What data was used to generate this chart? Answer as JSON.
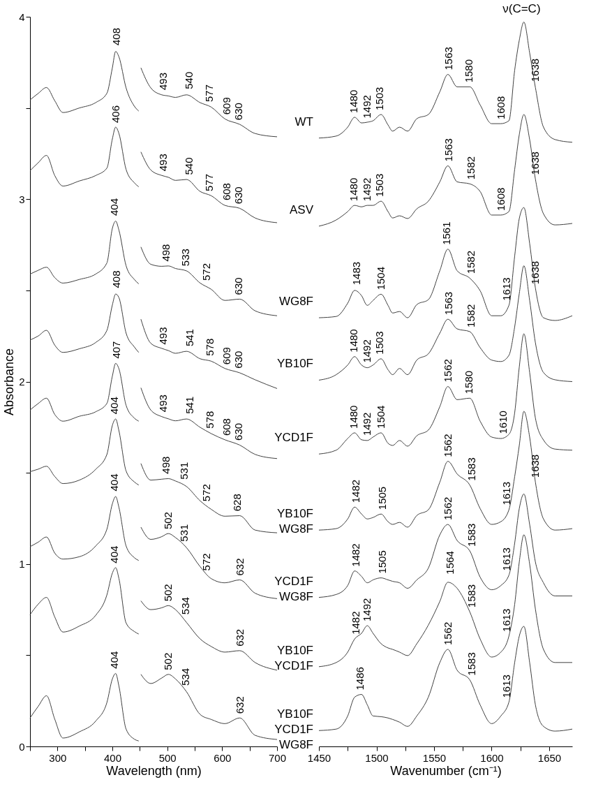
{
  "chart_data": [
    {
      "type": "line",
      "xlabel": "Wavelength (nm)",
      "ylabel": "Absorbance",
      "xlim": [
        250,
        700
      ],
      "ylim": [
        0,
        4
      ],
      "xticks": [
        {
          "value": 250,
          "label": null
        },
        300,
        {
          "value": 350,
          "label": null
        },
        400,
        {
          "value": 450,
          "label": null
        },
        500,
        {
          "value": 550,
          "label": null
        },
        600,
        {
          "value": 650,
          "label": null
        },
        700
      ],
      "yticks": [
        0,
        {
          "value": 0.5,
          "label": null
        },
        1,
        {
          "value": 1.5,
          "label": null
        },
        2,
        {
          "value": 2.5,
          "label": null
        },
        3,
        {
          "value": 3.5,
          "label": null
        },
        4
      ],
      "x": [
        250,
        265,
        280,
        295,
        310,
        340,
        370,
        390,
        400,
        406,
        412,
        425,
        440,
        448,
        450,
        452,
        470,
        490,
        502,
        515,
        535,
        560,
        580,
        605,
        632,
        660,
        700
      ],
      "series": [
        {
          "color": "#404040",
          "values": [
            3.544,
            3.58,
            3.612,
            3.54,
            3.475,
            3.5,
            3.53,
            3.58,
            3.72,
            3.81,
            3.78,
            3.61,
            3.51,
            3.483,
            null,
            3.72,
            3.61,
            3.572,
            3.566,
            3.558,
            3.572,
            3.529,
            3.505,
            3.44,
            3.41,
            3.36,
            3.342
          ]
        },
        {
          "color": "#404040",
          "values": [
            3.156,
            3.2,
            3.24,
            3.13,
            3.072,
            3.1,
            3.13,
            3.17,
            3.33,
            3.395,
            3.36,
            3.163,
            3.09,
            3.068,
            null,
            3.259,
            3.16,
            3.13,
            3.12,
            3.103,
            3.108,
            3.042,
            3.019,
            2.966,
            2.95,
            2.897,
            2.871
          ]
        },
        {
          "color": "#404040",
          "values": [
            2.589,
            2.61,
            2.627,
            2.57,
            2.54,
            2.56,
            2.59,
            2.65,
            2.84,
            2.88,
            2.83,
            2.635,
            2.56,
            2.536,
            null,
            2.738,
            2.643,
            2.632,
            2.634,
            2.62,
            2.607,
            2.54,
            2.506,
            2.445,
            2.452,
            2.388,
            2.361
          ]
        },
        {
          "color": "#404040",
          "values": [
            2.228,
            2.25,
            2.281,
            2.2,
            2.16,
            2.18,
            2.215,
            2.28,
            2.42,
            2.48,
            2.46,
            2.266,
            2.19,
            2.16,
            null,
            2.342,
            2.21,
            2.182,
            2.17,
            2.155,
            2.166,
            2.125,
            2.112,
            2.072,
            2.048,
            2.01,
            1.962
          ]
        },
        {
          "color": "#404040",
          "values": [
            1.844,
            1.88,
            1.909,
            1.82,
            1.783,
            1.81,
            1.835,
            1.88,
            2.03,
            2.1,
            2.07,
            1.87,
            1.8,
            1.783,
            null,
            1.966,
            1.844,
            1.808,
            1.796,
            1.785,
            1.795,
            1.749,
            1.715,
            1.681,
            1.652,
            1.601,
            1.578
          ]
        },
        {
          "color": "#404040",
          "values": [
            1.506,
            1.52,
            1.536,
            1.48,
            1.441,
            1.46,
            1.52,
            1.6,
            1.76,
            1.795,
            1.73,
            1.51,
            1.45,
            1.433,
            null,
            1.551,
            1.46,
            1.465,
            1.468,
            1.455,
            1.425,
            1.346,
            1.3,
            1.262,
            1.265,
            1.186,
            1.171
          ]
        },
        {
          "color": "#404040",
          "values": [
            1.095,
            1.12,
            1.148,
            1.06,
            1.027,
            1.04,
            1.1,
            1.19,
            1.33,
            1.37,
            1.31,
            1.099,
            1.035,
            1.019,
            null,
            1.202,
            1.135,
            1.15,
            1.167,
            1.145,
            1.09,
            0.985,
            0.92,
            0.897,
            0.913,
            0.84,
            0.81
          ]
        },
        {
          "color": "#404040",
          "values": [
            0.722,
            0.78,
            0.817,
            0.71,
            0.627,
            0.66,
            0.72,
            0.83,
            0.95,
            0.98,
            0.92,
            0.677,
            0.63,
            0.616,
            null,
            0.798,
            0.75,
            0.76,
            0.772,
            0.75,
            0.68,
            0.589,
            0.548,
            0.517,
            0.525,
            0.46,
            0.418
          ]
        },
        {
          "color": "#404040",
          "values": [
            0.156,
            0.22,
            0.278,
            0.15,
            0.046,
            0.08,
            0.14,
            0.24,
            0.37,
            0.4,
            0.33,
            0.095,
            0.04,
            0.03,
            null,
            0.395,
            0.345,
            0.375,
            0.395,
            0.37,
            0.3,
            0.175,
            0.148,
            0.125,
            0.156,
            0.061,
            0.038
          ]
        }
      ],
      "annotations": [
        {
          "text": "408",
          "x": 408,
          "y": 3.82
        },
        {
          "text": "493",
          "x": 493,
          "y": 3.575
        },
        {
          "text": "540",
          "x": 540,
          "y": 3.58
        },
        {
          "text": "577",
          "x": 577,
          "y": 3.51
        },
        {
          "text": "609",
          "x": 609,
          "y": 3.44
        },
        {
          "text": "630",
          "x": 630,
          "y": 3.41
        },
        {
          "text": "406",
          "x": 406,
          "y": 3.395
        },
        {
          "text": "493",
          "x": 493,
          "y": 3.13
        },
        {
          "text": "540",
          "x": 540,
          "y": 3.11
        },
        {
          "text": "577",
          "x": 577,
          "y": 3.02
        },
        {
          "text": "608",
          "x": 608,
          "y": 2.97
        },
        {
          "text": "630",
          "x": 630,
          "y": 2.95
        },
        {
          "text": "404",
          "x": 404,
          "y": 2.886
        },
        {
          "text": "498",
          "x": 498,
          "y": 2.635
        },
        {
          "text": "533",
          "x": 533,
          "y": 2.61
        },
        {
          "text": "572",
          "x": 572,
          "y": 2.53
        },
        {
          "text": "630",
          "x": 630,
          "y": 2.452
        },
        {
          "text": "408",
          "x": 408,
          "y": 2.49
        },
        {
          "text": "493",
          "x": 493,
          "y": 2.18
        },
        {
          "text": "541",
          "x": 541,
          "y": 2.17
        },
        {
          "text": "578",
          "x": 578,
          "y": 2.118
        },
        {
          "text": "609",
          "x": 609,
          "y": 2.07
        },
        {
          "text": "630",
          "x": 630,
          "y": 2.049
        },
        {
          "text": "407",
          "x": 407,
          "y": 2.103
        },
        {
          "text": "493",
          "x": 493,
          "y": 1.81
        },
        {
          "text": "541",
          "x": 541,
          "y": 1.8
        },
        {
          "text": "578",
          "x": 578,
          "y": 1.72
        },
        {
          "text": "608",
          "x": 608,
          "y": 1.68
        },
        {
          "text": "630",
          "x": 630,
          "y": 1.654
        },
        {
          "text": "404",
          "x": 404,
          "y": 1.798
        },
        {
          "text": "498",
          "x": 498,
          "y": 1.471
        },
        {
          "text": "531",
          "x": 531,
          "y": 1.44
        },
        {
          "text": "572",
          "x": 572,
          "y": 1.32
        },
        {
          "text": "628",
          "x": 628,
          "y": 1.266
        },
        {
          "text": "404",
          "x": 404,
          "y": 1.376
        },
        {
          "text": "502",
          "x": 502,
          "y": 1.167
        },
        {
          "text": "531",
          "x": 531,
          "y": 1.1
        },
        {
          "text": "572",
          "x": 572,
          "y": 0.94
        },
        {
          "text": "632",
          "x": 632,
          "y": 0.913
        },
        {
          "text": "404",
          "x": 404,
          "y": 0.981
        },
        {
          "text": "502",
          "x": 502,
          "y": 0.772
        },
        {
          "text": "534",
          "x": 534,
          "y": 0.7
        },
        {
          "text": "632",
          "x": 632,
          "y": 0.525
        },
        {
          "text": "404",
          "x": 404,
          "y": 0.403
        },
        {
          "text": "502",
          "x": 502,
          "y": 0.395
        },
        {
          "text": "534",
          "x": 534,
          "y": 0.31
        },
        {
          "text": "632",
          "x": 632,
          "y": 0.156
        }
      ]
    },
    {
      "type": "line",
      "xlabel": "Wavenumber (cm⁻¹)",
      "xlim": [
        1450,
        1670
      ],
      "ylim": [
        0,
        4
      ],
      "tick_labels": "x",
      "xticks": [
        1450,
        {
          "value": 1475,
          "label": null
        },
        1500,
        {
          "value": 1525,
          "label": null
        },
        1550,
        {
          "value": 1575,
          "label": null
        },
        1600,
        {
          "value": 1625,
          "label": null
        },
        1650
      ],
      "x": [
        1450,
        1465,
        1475,
        1481,
        1487,
        1492,
        1497,
        1504,
        1510,
        1514,
        1520,
        1527,
        1535,
        1545,
        1555,
        1562,
        1570,
        1581,
        1590,
        1600,
        1608,
        1615,
        1620,
        1624,
        1628,
        1633,
        1638,
        1645,
        1655,
        1670
      ],
      "series": [
        {
          "name": "WT",
          "color": "#404040",
          "values": [
            3.335,
            3.346,
            3.395,
            3.449,
            3.418,
            3.422,
            3.43,
            3.464,
            3.407,
            3.373,
            3.395,
            3.373,
            3.441,
            3.464,
            3.589,
            3.684,
            3.616,
            3.616,
            3.517,
            3.414,
            3.414,
            3.43,
            3.707,
            3.871,
            3.971,
            3.802,
            3.612,
            3.395,
            3.327,
            3.312
          ]
        },
        {
          "name": "ASV",
          "color": "#404040",
          "values": [
            2.852,
            2.886,
            2.932,
            2.966,
            2.958,
            2.966,
            2.966,
            2.989,
            2.932,
            2.897,
            2.909,
            2.894,
            2.947,
            2.989,
            3.095,
            3.183,
            3.095,
            3.084,
            3.042,
            2.913,
            2.913,
            2.932,
            3.163,
            3.354,
            3.464,
            3.327,
            3.11,
            2.92,
            2.859,
            2.867
          ]
        },
        {
          "name": "WG8F",
          "color": "#404040",
          "values": [
            2.35,
            2.357,
            2.43,
            2.5,
            2.471,
            2.418,
            2.445,
            2.479,
            2.418,
            2.376,
            2.384,
            2.35,
            2.422,
            2.449,
            2.608,
            2.726,
            2.608,
            2.567,
            2.498,
            2.361,
            2.361,
            2.418,
            2.688,
            2.894,
            2.954,
            2.757,
            2.513,
            2.35,
            2.335,
            2.361
          ]
        },
        {
          "name": "YB10F",
          "color": "#404040",
          "values": [
            2.008,
            2.038,
            2.091,
            2.137,
            2.091,
            2.076,
            2.091,
            2.125,
            2.065,
            2.038,
            2.072,
            2.038,
            2.118,
            2.152,
            2.266,
            2.342,
            2.289,
            2.274,
            2.186,
            2.118,
            2.11,
            2.144,
            2.3,
            2.483,
            2.635,
            2.445,
            2.213,
            2.05,
            2.01,
            2.0
          ]
        },
        {
          "name": "YCD1F",
          "color": "#404040",
          "values": [
            1.603,
            1.624,
            1.688,
            1.719,
            1.681,
            1.677,
            1.696,
            1.719,
            1.662,
            1.65,
            1.677,
            1.646,
            1.703,
            1.734,
            1.863,
            1.973,
            1.901,
            1.909,
            1.783,
            1.696,
            1.688,
            1.711,
            1.829,
            2.08,
            2.262,
            2.05,
            1.8,
            1.68,
            1.63,
            1.624
          ]
        },
        {
          "name": "YB10F\nWG8F",
          "color": "#404040",
          "values": [
            1.186,
            1.194,
            1.247,
            1.312,
            1.274,
            1.247,
            1.255,
            1.274,
            1.232,
            1.217,
            1.228,
            1.202,
            1.266,
            1.297,
            1.449,
            1.563,
            1.494,
            1.433,
            1.304,
            1.217,
            1.232,
            1.297,
            1.479,
            1.65,
            1.837,
            1.696,
            1.449,
            1.247,
            1.186,
            1.194
          ]
        },
        {
          "name": "YCD1F\nWG8F",
          "color": "#404040",
          "values": [
            0.817,
            0.833,
            0.882,
            0.962,
            0.932,
            0.897,
            0.913,
            0.924,
            0.913,
            0.905,
            0.897,
            0.867,
            0.913,
            0.977,
            1.16,
            1.217,
            1.129,
            1.072,
            0.928,
            0.859,
            0.882,
            0.939,
            1.114,
            1.304,
            1.384,
            1.217,
            1.011,
            0.897,
            0.825,
            0.825
          ]
        },
        {
          "name": "YB10F\nYCD1F",
          "color": "#404040",
          "values": [
            0.437,
            0.46,
            0.517,
            0.589,
            0.62,
            0.662,
            0.62,
            0.563,
            0.54,
            0.532,
            0.517,
            0.498,
            0.563,
            0.665,
            0.795,
            0.9,
            0.867,
            0.738,
            0.589,
            0.49,
            0.517,
            0.605,
            0.779,
            1.011,
            1.16,
            1.0,
            0.753,
            0.532,
            0.46,
            0.46
          ]
        },
        {
          "name": "YB10F\nYCD1F\nWG8F",
          "color": "#404040",
          "values": [
            0.087,
            0.095,
            0.167,
            0.27,
            0.285,
            0.228,
            0.167,
            0.163,
            0.156,
            0.148,
            0.133,
            0.11,
            0.167,
            0.27,
            0.46,
            0.532,
            0.418,
            0.365,
            0.228,
            0.125,
            0.167,
            0.243,
            0.46,
            0.605,
            0.658,
            0.46,
            0.228,
            0.11,
            0.084,
            0.095
          ]
        }
      ],
      "annotations": [
        "ν(C=C)",
        {
          "text": "1480",
          "x": 1480,
          "y": 3.449
        },
        {
          "text": "1492",
          "x": 1492,
          "y": 3.42
        },
        {
          "text": "1503",
          "x": 1503,
          "y": 3.464
        },
        {
          "text": "1563",
          "x": 1563,
          "y": 3.684
        },
        {
          "text": "1580",
          "x": 1580,
          "y": 3.616
        },
        {
          "text": "1608",
          "x": 1608,
          "y": 3.414
        },
        {
          "text": "1638",
          "x": 1638,
          "y": 3.62
        },
        {
          "text": "1480",
          "x": 1480,
          "y": 2.966
        },
        {
          "text": "1492",
          "x": 1492,
          "y": 2.966
        },
        {
          "text": "1503",
          "x": 1503,
          "y": 2.989
        },
        {
          "text": "1563",
          "x": 1563,
          "y": 3.183
        },
        {
          "text": "1582",
          "x": 1582,
          "y": 3.084
        },
        {
          "text": "1608",
          "x": 1608,
          "y": 2.913
        },
        {
          "text": "1638",
          "x": 1638,
          "y": 3.11
        },
        {
          "text": "1483",
          "x": 1483,
          "y": 2.506
        },
        {
          "text": "1504",
          "x": 1504,
          "y": 2.479
        },
        {
          "text": "1561",
          "x": 1561,
          "y": 2.726
        },
        {
          "text": "1582",
          "x": 1582,
          "y": 2.567
        },
        {
          "text": "1613",
          "x": 1613,
          "y": 2.42
        },
        {
          "text": "1638",
          "x": 1638,
          "y": 2.51
        },
        {
          "text": "1480",
          "x": 1480,
          "y": 2.137
        },
        {
          "text": "1492",
          "x": 1492,
          "y": 2.08
        },
        {
          "text": "1503",
          "x": 1503,
          "y": 2.125
        },
        {
          "text": "1563",
          "x": 1563,
          "y": 2.342
        },
        {
          "text": "1582",
          "x": 1582,
          "y": 2.274
        },
        {
          "text": "1480",
          "x": 1480,
          "y": 1.719
        },
        {
          "text": "1492",
          "x": 1492,
          "y": 1.68
        },
        {
          "text": "1504",
          "x": 1504,
          "y": 1.719
        },
        {
          "text": "1562",
          "x": 1562,
          "y": 1.973
        },
        {
          "text": "1580",
          "x": 1580,
          "y": 1.909
        },
        {
          "text": "1610",
          "x": 1610,
          "y": 1.69
        },
        {
          "text": "1482",
          "x": 1482,
          "y": 1.312
        },
        {
          "text": "1505",
          "x": 1505,
          "y": 1.274
        },
        {
          "text": "1562",
          "x": 1562,
          "y": 1.563
        },
        {
          "text": "1583",
          "x": 1583,
          "y": 1.433
        },
        {
          "text": "1613",
          "x": 1613,
          "y": 1.3
        },
        {
          "text": "1638",
          "x": 1638,
          "y": 1.45
        },
        {
          "text": "1482",
          "x": 1482,
          "y": 0.962
        },
        {
          "text": "1505",
          "x": 1505,
          "y": 0.924
        },
        {
          "text": "1562",
          "x": 1562,
          "y": 1.217
        },
        {
          "text": "1583",
          "x": 1583,
          "y": 1.072
        },
        {
          "text": "1613",
          "x": 1613,
          "y": 0.94
        },
        {
          "text": "1482",
          "x": 1482,
          "y": 0.59
        },
        {
          "text": "1492",
          "x": 1492,
          "y": 0.662
        },
        {
          "text": "1564",
          "x": 1564,
          "y": 0.92
        },
        {
          "text": "1583",
          "x": 1583,
          "y": 0.738
        },
        {
          "text": "1613",
          "x": 1613,
          "y": 0.605
        },
        {
          "text": "1486",
          "x": 1486,
          "y": 0.285
        },
        {
          "text": "1562",
          "x": 1562,
          "y": 0.532
        },
        {
          "text": "1583",
          "x": 1583,
          "y": 0.365
        },
        {
          "text": "1613",
          "x": 1613,
          "y": 0.243
        }
      ]
    }
  ]
}
